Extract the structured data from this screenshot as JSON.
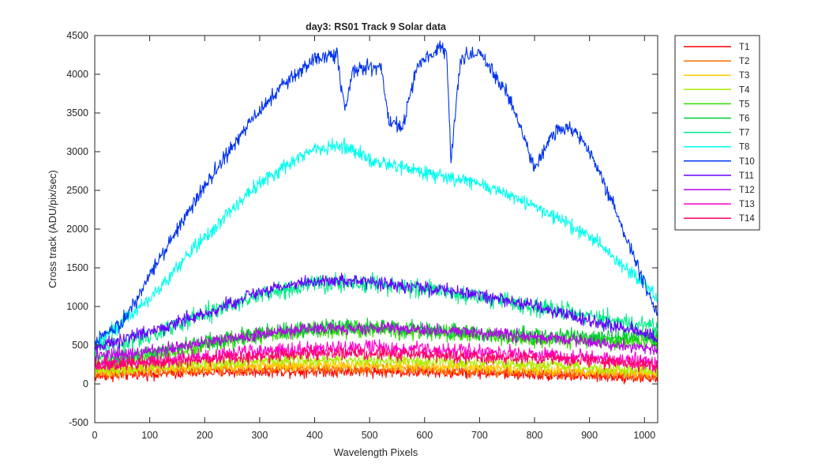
{
  "chart_data": {
    "type": "line",
    "title": "day3: RS01  Track 9 Solar data",
    "xlabel": "Wavelength Pixels",
    "ylabel": "Cross track (ADU/pix/sec)",
    "xlim": [
      0,
      1024
    ],
    "ylim": [
      -500,
      4500
    ],
    "xticks": [
      0,
      100,
      200,
      300,
      400,
      500,
      600,
      700,
      800,
      900,
      1000
    ],
    "yticks": [
      -500,
      0,
      500,
      1000,
      1500,
      2000,
      2500,
      3000,
      3500,
      4000,
      4500
    ],
    "grid": false,
    "legend_position": "outside-top-right",
    "series": [
      {
        "name": "T1",
        "color": "#ff0000",
        "noise": 55,
        "points": [
          [
            0,
            100
          ],
          [
            100,
            130
          ],
          [
            200,
            150
          ],
          [
            300,
            160
          ],
          [
            400,
            165
          ],
          [
            500,
            165
          ],
          [
            600,
            150
          ],
          [
            700,
            140
          ],
          [
            800,
            120
          ],
          [
            900,
            100
          ],
          [
            1000,
            80
          ],
          [
            1024,
            70
          ]
        ]
      },
      {
        "name": "T2",
        "color": "#ff6a00",
        "noise": 55,
        "points": [
          [
            0,
            130
          ],
          [
            100,
            160
          ],
          [
            200,
            180
          ],
          [
            300,
            195
          ],
          [
            400,
            200
          ],
          [
            500,
            200
          ],
          [
            600,
            185
          ],
          [
            700,
            170
          ],
          [
            800,
            150
          ],
          [
            900,
            130
          ],
          [
            1000,
            110
          ],
          [
            1024,
            100
          ]
        ]
      },
      {
        "name": "T3",
        "color": "#ffcc00",
        "noise": 55,
        "points": [
          [
            0,
            160
          ],
          [
            100,
            190
          ],
          [
            200,
            220
          ],
          [
            300,
            240
          ],
          [
            400,
            250
          ],
          [
            500,
            245
          ],
          [
            600,
            230
          ],
          [
            700,
            215
          ],
          [
            800,
            190
          ],
          [
            900,
            165
          ],
          [
            1000,
            140
          ],
          [
            1024,
            130
          ]
        ]
      },
      {
        "name": "T4",
        "color": "#aaee00",
        "noise": 60,
        "points": [
          [
            0,
            190
          ],
          [
            100,
            230
          ],
          [
            200,
            270
          ],
          [
            300,
            300
          ],
          [
            400,
            310
          ],
          [
            500,
            305
          ],
          [
            600,
            290
          ],
          [
            700,
            270
          ],
          [
            800,
            240
          ],
          [
            900,
            210
          ],
          [
            1000,
            180
          ],
          [
            1024,
            170
          ]
        ]
      },
      {
        "name": "T5",
        "color": "#33dd00",
        "noise": 80,
        "points": [
          [
            0,
            250
          ],
          [
            100,
            340
          ],
          [
            200,
            500
          ],
          [
            300,
            620
          ],
          [
            400,
            690
          ],
          [
            500,
            700
          ],
          [
            600,
            660
          ],
          [
            700,
            620
          ],
          [
            800,
            580
          ],
          [
            900,
            560
          ],
          [
            1000,
            550
          ],
          [
            1024,
            540
          ]
        ]
      },
      {
        "name": "T6",
        "color": "#00cc33",
        "noise": 80,
        "points": [
          [
            0,
            300
          ],
          [
            100,
            400
          ],
          [
            200,
            540
          ],
          [
            300,
            650
          ],
          [
            400,
            720
          ],
          [
            500,
            730
          ],
          [
            600,
            700
          ],
          [
            700,
            660
          ],
          [
            800,
            630
          ],
          [
            900,
            610
          ],
          [
            1000,
            600
          ],
          [
            1024,
            590
          ]
        ]
      },
      {
        "name": "T7",
        "color": "#00ee88",
        "noise": 90,
        "points": [
          [
            0,
            450
          ],
          [
            100,
            620
          ],
          [
            200,
            900
          ],
          [
            300,
            1150
          ],
          [
            400,
            1290
          ],
          [
            500,
            1300
          ],
          [
            600,
            1220
          ],
          [
            700,
            1120
          ],
          [
            800,
            1000
          ],
          [
            900,
            870
          ],
          [
            1000,
            760
          ],
          [
            1024,
            700
          ]
        ]
      },
      {
        "name": "T8",
        "color": "#00ffee",
        "noise": 70,
        "points": [
          [
            0,
            500
          ],
          [
            100,
            1100
          ],
          [
            200,
            1900
          ],
          [
            300,
            2600
          ],
          [
            400,
            3050
          ],
          [
            450,
            3080
          ],
          [
            500,
            2900
          ],
          [
            600,
            2720
          ],
          [
            700,
            2580
          ],
          [
            800,
            2300
          ],
          [
            900,
            1900
          ],
          [
            950,
            1600
          ],
          [
            1000,
            1300
          ],
          [
            1024,
            1100
          ]
        ]
      },
      {
        "name": "T10",
        "color": "#0033ee",
        "noise": 75,
        "points": [
          [
            0,
            550
          ],
          [
            50,
            800
          ],
          [
            100,
            1400
          ],
          [
            150,
            2000
          ],
          [
            200,
            2550
          ],
          [
            250,
            3050
          ],
          [
            300,
            3550
          ],
          [
            350,
            3900
          ],
          [
            400,
            4200
          ],
          [
            440,
            4250
          ],
          [
            455,
            3550
          ],
          [
            470,
            4050
          ],
          [
            500,
            4100
          ],
          [
            520,
            4100
          ],
          [
            535,
            3400
          ],
          [
            560,
            3300
          ],
          [
            585,
            4100
          ],
          [
            630,
            4350
          ],
          [
            640,
            4300
          ],
          [
            648,
            2900
          ],
          [
            665,
            4200
          ],
          [
            700,
            4300
          ],
          [
            750,
            3750
          ],
          [
            780,
            3200
          ],
          [
            800,
            2800
          ],
          [
            840,
            3300
          ],
          [
            870,
            3300
          ],
          [
            900,
            3000
          ],
          [
            950,
            2200
          ],
          [
            1000,
            1300
          ],
          [
            1024,
            900
          ]
        ]
      },
      {
        "name": "T11",
        "color": "#6600ff",
        "noise": 65,
        "points": [
          [
            0,
            450
          ],
          [
            100,
            680
          ],
          [
            200,
            900
          ],
          [
            300,
            1200
          ],
          [
            400,
            1330
          ],
          [
            450,
            1340
          ],
          [
            500,
            1310
          ],
          [
            600,
            1240
          ],
          [
            700,
            1150
          ],
          [
            800,
            1000
          ],
          [
            900,
            820
          ],
          [
            1000,
            650
          ],
          [
            1024,
            580
          ]
        ]
      },
      {
        "name": "T12",
        "color": "#bb00ee",
        "noise": 60,
        "points": [
          [
            0,
            350
          ],
          [
            100,
            420
          ],
          [
            200,
            540
          ],
          [
            300,
            650
          ],
          [
            400,
            720
          ],
          [
            500,
            730
          ],
          [
            600,
            700
          ],
          [
            700,
            660
          ],
          [
            800,
            610
          ],
          [
            900,
            540
          ],
          [
            1000,
            470
          ],
          [
            1024,
            440
          ]
        ]
      },
      {
        "name": "T13",
        "color": "#ff00cc",
        "noise": 70,
        "points": [
          [
            0,
            250
          ],
          [
            100,
            300
          ],
          [
            200,
            360
          ],
          [
            300,
            420
          ],
          [
            400,
            450
          ],
          [
            500,
            460
          ],
          [
            600,
            440
          ],
          [
            700,
            410
          ],
          [
            800,
            380
          ],
          [
            900,
            340
          ],
          [
            1000,
            290
          ],
          [
            1024,
            270
          ]
        ]
      },
      {
        "name": "T14",
        "color": "#ff0066",
        "noise": 65,
        "points": [
          [
            0,
            220
          ],
          [
            100,
            270
          ],
          [
            200,
            320
          ],
          [
            300,
            360
          ],
          [
            400,
            390
          ],
          [
            500,
            395
          ],
          [
            600,
            380
          ],
          [
            700,
            355
          ],
          [
            800,
            330
          ],
          [
            900,
            300
          ],
          [
            1000,
            260
          ],
          [
            1024,
            240
          ]
        ]
      }
    ]
  }
}
